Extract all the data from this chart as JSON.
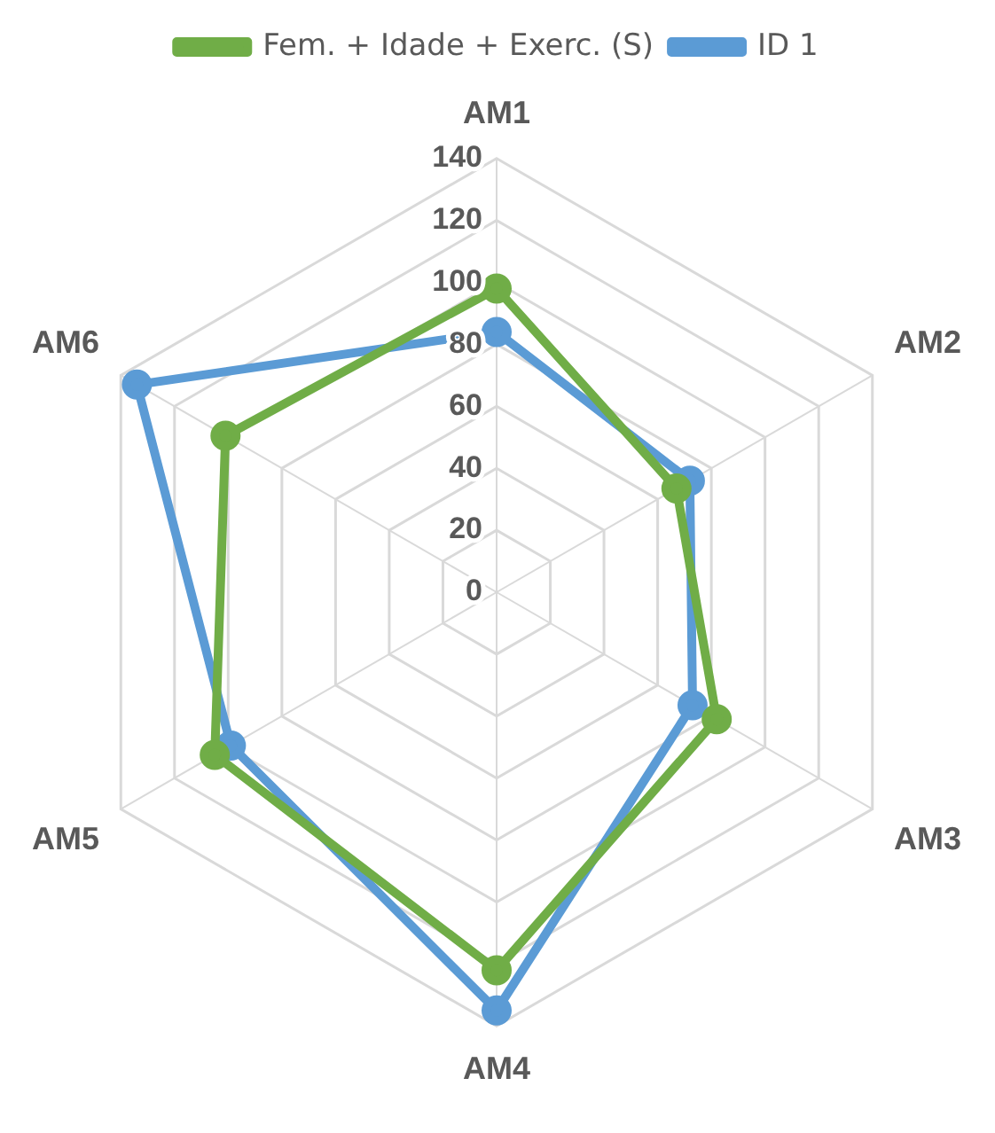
{
  "chart_data": {
    "type": "radar",
    "categories": [
      "AM1",
      "AM2",
      "AM3",
      "AM4",
      "AM5",
      "AM6"
    ],
    "series": [
      {
        "name": "Fem. + Idade + Exerc. (S)",
        "color": "#70ad47",
        "values": [
          98,
          67,
          82,
          122,
          105,
          101
        ]
      },
      {
        "name": "ID 1",
        "color": "#5b9bd5",
        "values": [
          84,
          72,
          73,
          135,
          99,
          134
        ]
      }
    ],
    "ylim": [
      0,
      140
    ],
    "yticks": [
      0,
      20,
      40,
      60,
      80,
      100,
      120,
      140
    ],
    "grid": true,
    "legend": "top",
    "marker": "circle",
    "line_style": "solid"
  }
}
